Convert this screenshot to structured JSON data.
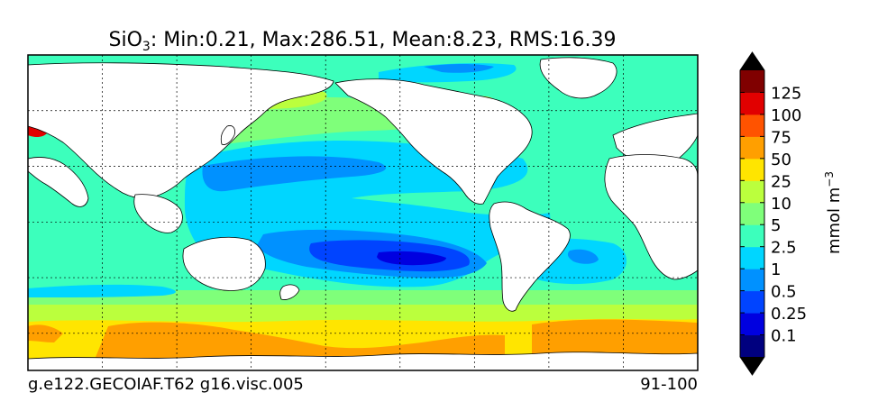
{
  "title": {
    "variable": "SiO",
    "subscript": "3",
    "stats": ": Min:0.21, Max:286.51, Mean:8.23, RMS:16.39"
  },
  "footer": {
    "run_name": "g.e122.GECOIAF.T62 g16.visc.005",
    "years": "91-100"
  },
  "colorbar": {
    "label": "mmol m",
    "label_exponent": "−3",
    "tick_labels": [
      "0.1",
      "0.25",
      "0.5",
      "1",
      "2.5",
      "5",
      "10",
      "25",
      "50",
      "75",
      "100",
      "125"
    ],
    "colors": [
      "#00007f",
      "#0000e0",
      "#0044ff",
      "#0091ff",
      "#00d6ff",
      "#3cffbc",
      "#7fff7a",
      "#bbff3d",
      "#ffe500",
      "#ff9f00",
      "#ff5300",
      "#e10000",
      "#800000"
    ],
    "extend": "both"
  },
  "map": {
    "projection": "equirectangular",
    "land_color": "#ffffff",
    "grid": "dashed",
    "meridians_deg": [
      20,
      60,
      100,
      140,
      180,
      220,
      260,
      300,
      340
    ],
    "parallels_deg": [
      -60,
      -30,
      0,
      30,
      60
    ]
  }
}
